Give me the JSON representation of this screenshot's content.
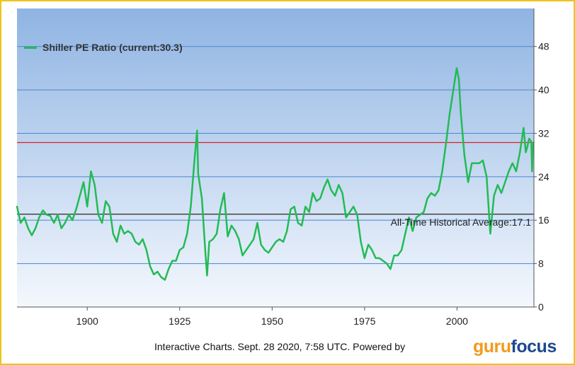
{
  "legend_label": "Shiller PE Ratio (current:30.3)",
  "footer_text": "Interactive Charts. Sept. 28 2020, 7:58 UTC. Powered by",
  "logo": {
    "part1": "guru",
    "part2": "focus"
  },
  "colors": {
    "series": "#22bb55",
    "current_line": "#dd2222",
    "average_line": "#111111",
    "grid": "#4a86cf",
    "plot_top": "#8fb4e3",
    "plot_bottom": "#f4f8fd",
    "frame_border": "#f0c419"
  },
  "chart_data": {
    "type": "line",
    "title": "",
    "xlabel": "",
    "ylabel": "",
    "xlim": [
      1881,
      2020.8
    ],
    "ylim": [
      0,
      55
    ],
    "x_ticks": [
      1900,
      1925,
      1950,
      1975,
      2000
    ],
    "y_ticks": [
      0,
      8,
      16,
      24,
      32,
      40,
      48
    ],
    "y_axis_side": "right",
    "grid": "horizontal",
    "legend_position": "top-left",
    "reference_lines": [
      {
        "label": "",
        "value": 30.3
      },
      {
        "label": "All-Time Historical Average:17.1",
        "value": 17.1
      }
    ],
    "series": [
      {
        "name": "Shiller PE Ratio (current:30.3)",
        "points": [
          [
            1881,
            18.5
          ],
          [
            1882,
            15.5
          ],
          [
            1883,
            16.5
          ],
          [
            1884,
            14.5
          ],
          [
            1885,
            13.2
          ],
          [
            1886,
            14.5
          ],
          [
            1887,
            16.5
          ],
          [
            1888,
            17.8
          ],
          [
            1889,
            17.0
          ],
          [
            1890,
            16.8
          ],
          [
            1891,
            15.5
          ],
          [
            1892,
            17.0
          ],
          [
            1893,
            14.5
          ],
          [
            1894,
            15.5
          ],
          [
            1895,
            17.0
          ],
          [
            1896,
            16.0
          ],
          [
            1897,
            18.0
          ],
          [
            1898,
            20.5
          ],
          [
            1899,
            23.0
          ],
          [
            1900,
            18.5
          ],
          [
            1901,
            25.0
          ],
          [
            1902,
            22.5
          ],
          [
            1903,
            17.0
          ],
          [
            1904,
            15.5
          ],
          [
            1905,
            19.5
          ],
          [
            1906,
            18.5
          ],
          [
            1907,
            13.5
          ],
          [
            1908,
            12.0
          ],
          [
            1909,
            15.0
          ],
          [
            1910,
            13.5
          ],
          [
            1911,
            14.0
          ],
          [
            1912,
            13.5
          ],
          [
            1913,
            12.0
          ],
          [
            1914,
            11.5
          ],
          [
            1915,
            12.5
          ],
          [
            1916,
            10.5
          ],
          [
            1917,
            7.5
          ],
          [
            1918,
            6.0
          ],
          [
            1919,
            6.5
          ],
          [
            1920,
            5.5
          ],
          [
            1921,
            5.0
          ],
          [
            1922,
            7.0
          ],
          [
            1923,
            8.5
          ],
          [
            1924,
            8.5
          ],
          [
            1925,
            10.5
          ],
          [
            1926,
            11.0
          ],
          [
            1927,
            13.5
          ],
          [
            1928,
            18.5
          ],
          [
            1929,
            27.0
          ],
          [
            1929.7,
            32.5
          ],
          [
            1930,
            24.5
          ],
          [
            1931,
            20.0
          ],
          [
            1932,
            9.5
          ],
          [
            1932.4,
            5.8
          ],
          [
            1933,
            12.0
          ],
          [
            1934,
            12.5
          ],
          [
            1935,
            13.5
          ],
          [
            1936,
            18.0
          ],
          [
            1937,
            21.0
          ],
          [
            1938,
            13.0
          ],
          [
            1939,
            15.0
          ],
          [
            1940,
            14.0
          ],
          [
            1941,
            12.5
          ],
          [
            1942,
            9.5
          ],
          [
            1943,
            10.5
          ],
          [
            1944,
            11.5
          ],
          [
            1945,
            12.5
          ],
          [
            1946,
            15.5
          ],
          [
            1947,
            11.5
          ],
          [
            1948,
            10.5
          ],
          [
            1949,
            10.0
          ],
          [
            1950,
            11.0
          ],
          [
            1951,
            12.0
          ],
          [
            1952,
            12.5
          ],
          [
            1953,
            12.0
          ],
          [
            1954,
            14.0
          ],
          [
            1955,
            18.0
          ],
          [
            1956,
            18.5
          ],
          [
            1957,
            15.5
          ],
          [
            1958,
            15.0
          ],
          [
            1959,
            18.5
          ],
          [
            1960,
            17.5
          ],
          [
            1961,
            21.0
          ],
          [
            1962,
            19.5
          ],
          [
            1963,
            20.0
          ],
          [
            1964,
            22.0
          ],
          [
            1965,
            23.5
          ],
          [
            1966,
            21.5
          ],
          [
            1967,
            20.5
          ],
          [
            1968,
            22.5
          ],
          [
            1969,
            21.0
          ],
          [
            1970,
            16.5
          ],
          [
            1971,
            17.5
          ],
          [
            1972,
            18.5
          ],
          [
            1973,
            17.0
          ],
          [
            1974,
            12.0
          ],
          [
            1975,
            9.0
          ],
          [
            1976,
            11.5
          ],
          [
            1977,
            10.5
          ],
          [
            1978,
            9.0
          ],
          [
            1979,
            9.0
          ],
          [
            1980,
            8.5
          ],
          [
            1981,
            8.0
          ],
          [
            1982,
            7.0
          ],
          [
            1983,
            9.5
          ],
          [
            1984,
            9.5
          ],
          [
            1985,
            10.5
          ],
          [
            1986,
            13.5
          ],
          [
            1987,
            16.5
          ],
          [
            1988,
            14.0
          ],
          [
            1989,
            16.5
          ],
          [
            1990,
            17.0
          ],
          [
            1991,
            17.5
          ],
          [
            1992,
            20.0
          ],
          [
            1993,
            21.0
          ],
          [
            1994,
            20.5
          ],
          [
            1995,
            21.5
          ],
          [
            1996,
            25.0
          ],
          [
            1997,
            30.0
          ],
          [
            1998,
            35.5
          ],
          [
            1999,
            40.0
          ],
          [
            1999.9,
            44.0
          ],
          [
            2000.5,
            42.0
          ],
          [
            2001,
            36.0
          ],
          [
            2002,
            28.0
          ],
          [
            2003,
            23.0
          ],
          [
            2004,
            26.5
          ],
          [
            2005,
            26.5
          ],
          [
            2006,
            26.5
          ],
          [
            2007,
            27.0
          ],
          [
            2008,
            24.0
          ],
          [
            2009,
            13.5
          ],
          [
            2010,
            20.5
          ],
          [
            2011,
            22.5
          ],
          [
            2012,
            21.0
          ],
          [
            2013,
            23.0
          ],
          [
            2014,
            25.0
          ],
          [
            2015,
            26.5
          ],
          [
            2016,
            25.0
          ],
          [
            2017,
            28.5
          ],
          [
            2018,
            33.0
          ],
          [
            2018.6,
            28.5
          ],
          [
            2019,
            29.5
          ],
          [
            2019.5,
            31.0
          ],
          [
            2020.1,
            30.5
          ],
          [
            2020.3,
            25.0
          ],
          [
            2020.5,
            29.5
          ],
          [
            2020.7,
            30.3
          ]
        ]
      }
    ]
  }
}
